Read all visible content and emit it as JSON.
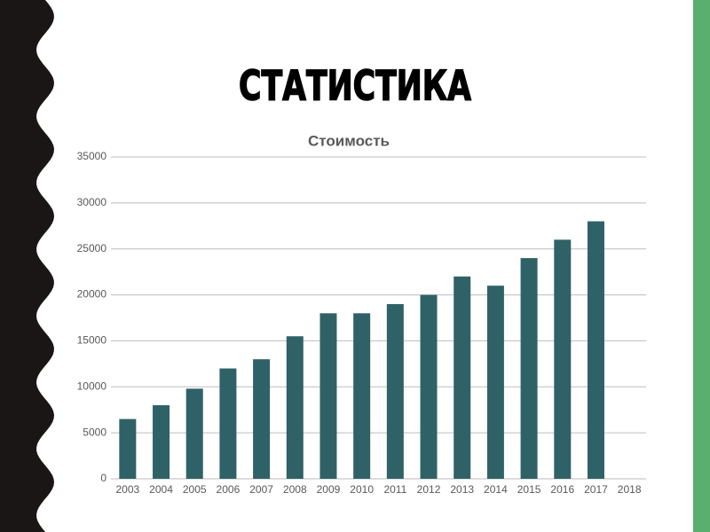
{
  "slide_title": "СТАТИСТИКА",
  "chart_data": {
    "type": "bar",
    "title": "Стоимость",
    "categories": [
      "2003",
      "2004",
      "2005",
      "2006",
      "2007",
      "2008",
      "2009",
      "2010",
      "2011",
      "2012",
      "2013",
      "2014",
      "2015",
      "2016",
      "2017",
      "2018"
    ],
    "values": [
      6500,
      8000,
      9800,
      12000,
      13000,
      15500,
      18000,
      18000,
      19000,
      20000,
      22000,
      21000,
      24000,
      26000,
      28000,
      null
    ],
    "color": "#2f6267",
    "ylim": [
      0,
      35000
    ],
    "yticks": [
      0,
      5000,
      10000,
      15000,
      20000,
      25000,
      30000,
      35000
    ],
    "grid": true
  }
}
